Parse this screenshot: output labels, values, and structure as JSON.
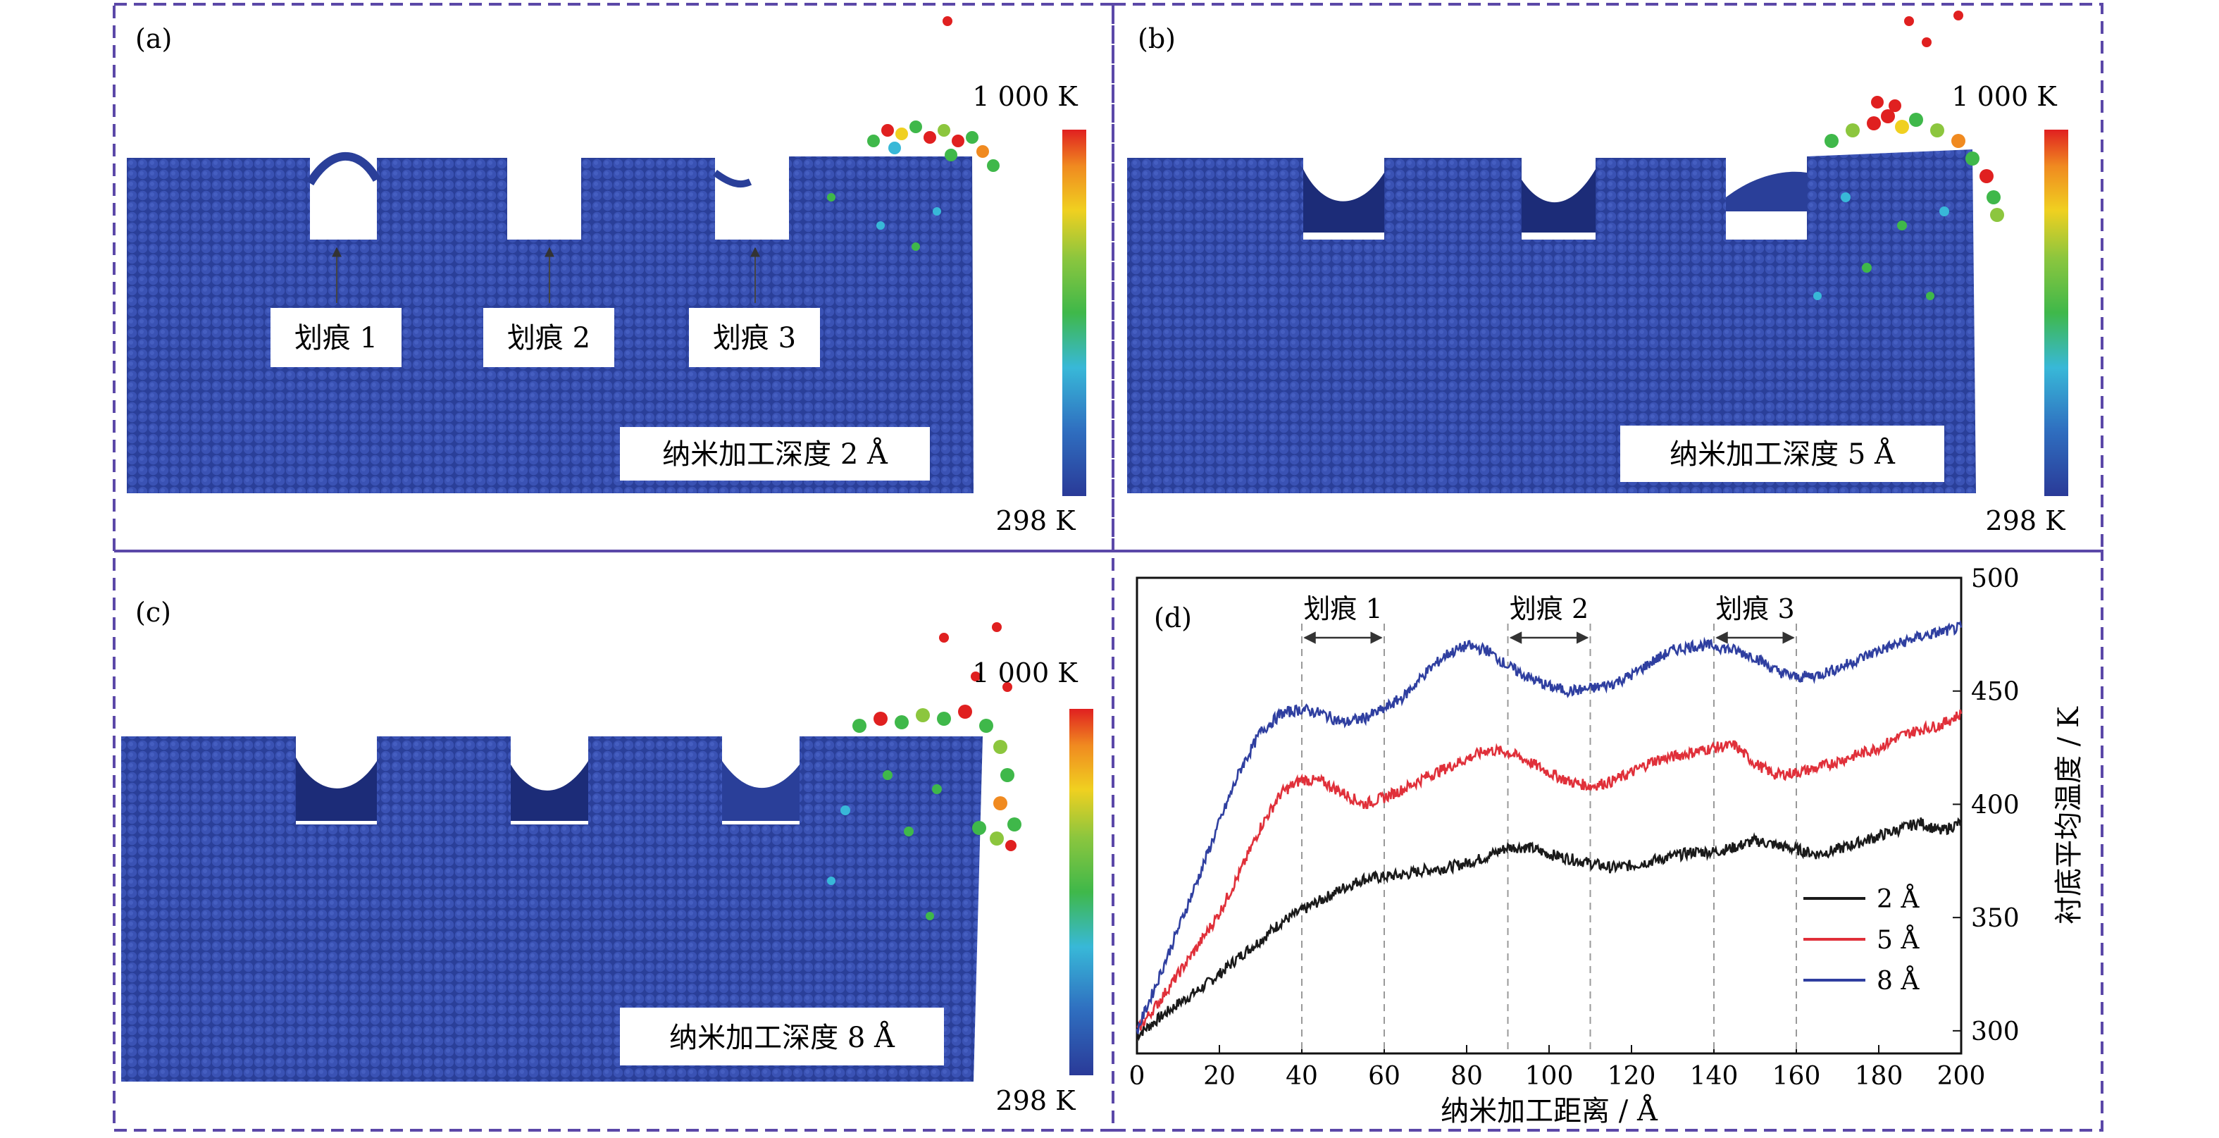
{
  "panels": {
    "a": {
      "label": "(a)",
      "depth_label": "纳米加工深度 2 Å",
      "scale_max_label": "1 000 K",
      "scale_min_label": "298 K",
      "callouts": [
        "划痕 1",
        "划痕 2",
        "划痕 3"
      ]
    },
    "b": {
      "label": "(b)",
      "depth_label": "纳米加工深度 5 Å",
      "scale_max_label": "1 000 K",
      "scale_min_label": "298 K"
    },
    "c": {
      "label": "(c)",
      "depth_label": "纳米加工深度 8 Å",
      "scale_max_label": "1 000 K",
      "scale_min_label": "298 K"
    },
    "d": {
      "label": "(d)"
    }
  },
  "colors": {
    "atom_base": "#2c45a0",
    "atom_dark": "#1c2c78",
    "panel_border": "#5b48a8",
    "colorbar": [
      "#2a3a98",
      "#2f6fc0",
      "#38b8d8",
      "#3fb84a",
      "#8cc63e",
      "#f0d020",
      "#f08a20",
      "#e02020"
    ],
    "series_2": "#1a1a1a",
    "series_5": "#e0303a",
    "series_8": "#2f3fa0",
    "gridline_dash": "#999999"
  },
  "chart_data": {
    "type": "line",
    "xlabel": "纳米加工距离 / Å",
    "ylabel": "衬底平均温度 / K",
    "xlim": [
      0,
      200
    ],
    "ylim": [
      290,
      500
    ],
    "xticks": [
      0,
      20,
      40,
      60,
      80,
      100,
      120,
      140,
      160,
      180,
      200
    ],
    "yticks": [
      300,
      350,
      400,
      450,
      500
    ],
    "grid": false,
    "legend_position": "bottom-right",
    "annotations": [
      {
        "text": "划痕 1",
        "x_start": 40,
        "x_end": 60
      },
      {
        "text": "划痕 2",
        "x_start": 90,
        "x_end": 110
      },
      {
        "text": "划痕 3",
        "x_start": 140,
        "x_end": 160
      }
    ],
    "series": [
      {
        "name": "2 Å",
        "x": [
          0,
          5,
          10,
          15,
          20,
          25,
          30,
          35,
          40,
          45,
          50,
          55,
          60,
          65,
          70,
          75,
          80,
          85,
          90,
          95,
          100,
          105,
          110,
          115,
          120,
          125,
          130,
          135,
          140,
          145,
          150,
          155,
          160,
          165,
          170,
          175,
          180,
          185,
          190,
          195,
          200
        ],
        "y": [
          298,
          305,
          312,
          318,
          325,
          333,
          340,
          348,
          353,
          358,
          363,
          367,
          368,
          369,
          371,
          372,
          374,
          377,
          381,
          381,
          378,
          376,
          374,
          372,
          373,
          375,
          377,
          379,
          379,
          381,
          384,
          382,
          380,
          378,
          380,
          383,
          386,
          389,
          392,
          388,
          392
        ]
      },
      {
        "name": "5 Å",
        "x": [
          0,
          5,
          10,
          15,
          20,
          25,
          30,
          35,
          40,
          45,
          50,
          55,
          60,
          65,
          70,
          75,
          80,
          85,
          90,
          95,
          100,
          105,
          110,
          115,
          120,
          125,
          130,
          135,
          140,
          145,
          150,
          155,
          160,
          165,
          170,
          175,
          180,
          185,
          190,
          195,
          200
        ],
        "y": [
          300,
          312,
          325,
          338,
          352,
          370,
          390,
          405,
          411,
          410,
          405,
          400,
          403,
          407,
          412,
          416,
          420,
          424,
          423,
          419,
          414,
          410,
          408,
          410,
          414,
          419,
          421,
          423,
          425,
          426,
          418,
          413,
          414,
          416,
          419,
          422,
          425,
          430,
          433,
          435,
          440
        ]
      },
      {
        "name": "8 Å",
        "x": [
          0,
          5,
          10,
          15,
          20,
          25,
          30,
          35,
          40,
          45,
          50,
          55,
          60,
          65,
          70,
          75,
          80,
          85,
          90,
          95,
          100,
          105,
          110,
          115,
          120,
          125,
          130,
          135,
          140,
          145,
          150,
          155,
          160,
          165,
          170,
          175,
          180,
          185,
          190,
          195,
          200
        ],
        "y": [
          300,
          322,
          345,
          368,
          392,
          415,
          432,
          440,
          442,
          440,
          436,
          438,
          442,
          448,
          458,
          466,
          470,
          468,
          461,
          456,
          452,
          450,
          451,
          453,
          457,
          463,
          468,
          470,
          470,
          468,
          465,
          459,
          456,
          457,
          460,
          464,
          468,
          471,
          474,
          476,
          478
        ]
      }
    ]
  }
}
